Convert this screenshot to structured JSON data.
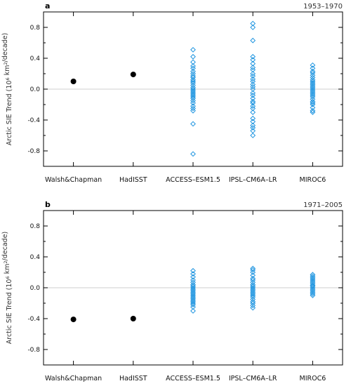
{
  "figure": {
    "ylabel": {
      "main": "Arctic SIE Trend (10",
      "exp": "6",
      "mid": " km",
      "exp2": "2",
      "end": "/decade)"
    }
  },
  "colors": {
    "obs": "#000000",
    "model": "#1f95e0",
    "zero_line": "#cfcfcf"
  },
  "chart_data": [
    {
      "type": "scatter",
      "panel": "a",
      "period": "1953–1970",
      "categories": [
        "Walsh&Chapman",
        "HadISST",
        "ACCESS–ESM1.5",
        "IPSL–CM6A–LR",
        "MIROC6"
      ],
      "ylim": [
        -1.0,
        1.0
      ],
      "yticks": [
        -0.8,
        -0.4,
        0.0,
        0.4,
        0.8
      ],
      "grid": false,
      "series": [
        {
          "marker": "filled-circle",
          "points": [
            {
              "category": "Walsh&Chapman",
              "y": 0.1
            },
            {
              "category": "HadISST",
              "y": 0.19
            }
          ]
        },
        {
          "marker": "open-diamond",
          "points": [
            {
              "category": "ACCESS–ESM1.5",
              "values": [
                0.51,
                0.42,
                0.35,
                0.3,
                0.27,
                0.23,
                0.2,
                0.17,
                0.15,
                0.12,
                0.1,
                0.08,
                0.05,
                0.02,
                0.0,
                -0.02,
                -0.04,
                -0.06,
                -0.08,
                -0.1,
                -0.12,
                -0.15,
                -0.18,
                -0.22,
                -0.25,
                -0.28,
                -0.45,
                -0.84
              ]
            },
            {
              "category": "IPSL–CM6A–LR",
              "values": [
                0.85,
                0.8,
                0.63,
                0.42,
                0.38,
                0.33,
                0.28,
                0.25,
                0.2,
                0.17,
                0.13,
                0.1,
                0.06,
                0.03,
                0.0,
                -0.05,
                -0.08,
                -0.12,
                -0.16,
                -0.18,
                -0.22,
                -0.25,
                -0.3,
                -0.38,
                -0.42,
                -0.47,
                -0.5,
                -0.54,
                -0.6
              ]
            },
            {
              "category": "MIROC6",
              "values": [
                0.31,
                0.27,
                0.23,
                0.21,
                0.18,
                0.15,
                0.12,
                0.1,
                0.08,
                0.06,
                0.04,
                0.02,
                0.0,
                -0.02,
                -0.04,
                -0.06,
                -0.08,
                -0.1,
                -0.13,
                -0.16,
                -0.18,
                -0.2,
                -0.24,
                -0.28,
                -0.3
              ]
            }
          ]
        }
      ]
    },
    {
      "type": "scatter",
      "panel": "b",
      "period": "1971–2005",
      "categories": [
        "Walsh&Chapman",
        "HadISST",
        "ACCESS–ESM1.5",
        "IPSL–CM6A–LR",
        "MIROC6"
      ],
      "ylim": [
        -1.0,
        1.0
      ],
      "yticks": [
        -0.8,
        -0.4,
        0.0,
        0.4,
        0.8
      ],
      "grid": false,
      "series": [
        {
          "marker": "filled-circle",
          "points": [
            {
              "category": "Walsh&Chapman",
              "y": -0.41
            },
            {
              "category": "HadISST",
              "y": -0.4
            }
          ]
        },
        {
          "marker": "open-diamond",
          "points": [
            {
              "category": "ACCESS–ESM1.5",
              "values": [
                0.22,
                0.18,
                0.14,
                0.1,
                0.07,
                0.04,
                0.02,
                0.0,
                -0.02,
                -0.04,
                -0.06,
                -0.08,
                -0.1,
                -0.12,
                -0.14,
                -0.16,
                -0.18,
                -0.2,
                -0.22,
                -0.25,
                -0.3
              ]
            },
            {
              "category": "IPSL–CM6A–LR",
              "values": [
                0.25,
                0.23,
                0.2,
                0.16,
                0.12,
                0.1,
                0.07,
                0.04,
                0.02,
                0.0,
                -0.02,
                -0.04,
                -0.06,
                -0.08,
                -0.1,
                -0.12,
                -0.15,
                -0.18,
                -0.2,
                -0.23,
                -0.26
              ]
            },
            {
              "category": "MIROC6",
              "values": [
                0.17,
                0.15,
                0.13,
                0.11,
                0.09,
                0.07,
                0.05,
                0.03,
                0.02,
                0.0,
                -0.02,
                -0.04,
                -0.06,
                -0.08,
                -0.1
              ]
            }
          ]
        }
      ]
    }
  ]
}
